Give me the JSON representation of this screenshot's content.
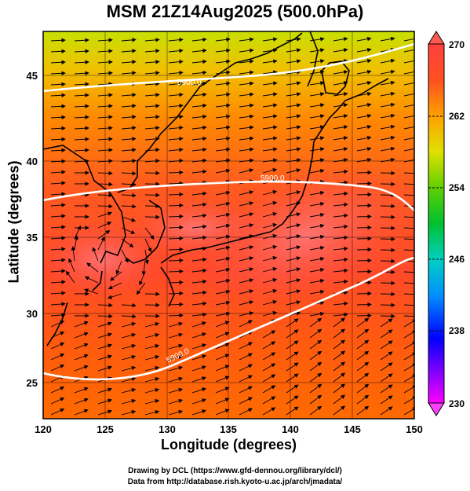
{
  "title": "MSM 21Z14Aug2025 (500.0hPa)",
  "axes": {
    "xlabel": "Longitude (degrees)",
    "ylabel": "Latitude  (degrees)",
    "x_ticks": [
      "120",
      "125",
      "130",
      "135",
      "140",
      "145",
      "150"
    ],
    "y_ticks": [
      "25",
      "30",
      "35",
      "40",
      "45"
    ],
    "xlim": [
      120,
      150
    ],
    "ylim": [
      22.4,
      47.6
    ]
  },
  "contours": [
    {
      "label": "5900.0",
      "value": 5900.0
    },
    {
      "label": "5900.0",
      "value": 5900.0
    },
    {
      "label": "5900.0",
      "value": 5900.0
    }
  ],
  "colorbar": {
    "ticks": [
      "270",
      "262",
      "254",
      "246",
      "238",
      "230"
    ],
    "min": 230,
    "max": 270,
    "colors": [
      "#ff00ff",
      "#6a00ff",
      "#0000ff",
      "#0080ff",
      "#00c8ff",
      "#00d0a0",
      "#00c000",
      "#80d000",
      "#e0e000",
      "#ffa000",
      "#ff6000",
      "#ff3030",
      "#ff6070"
    ]
  },
  "credits": {
    "line1": "Drawing by DCL (https://www.gfd-dennou.org/library/dcl/)",
    "line2": "Data from http://database.rish.kyoto-u.ac.jp/arch/jmadata/"
  },
  "chart_data": {
    "type": "heatmap",
    "variable": "temperature with wind streamlines",
    "level_hPa": 500.0,
    "time": "21Z14Aug2025",
    "x_range": [
      120,
      150
    ],
    "y_range": [
      22.4,
      47.6
    ],
    "color_range": [
      230,
      270
    ],
    "contour_value": 5900.0
  }
}
